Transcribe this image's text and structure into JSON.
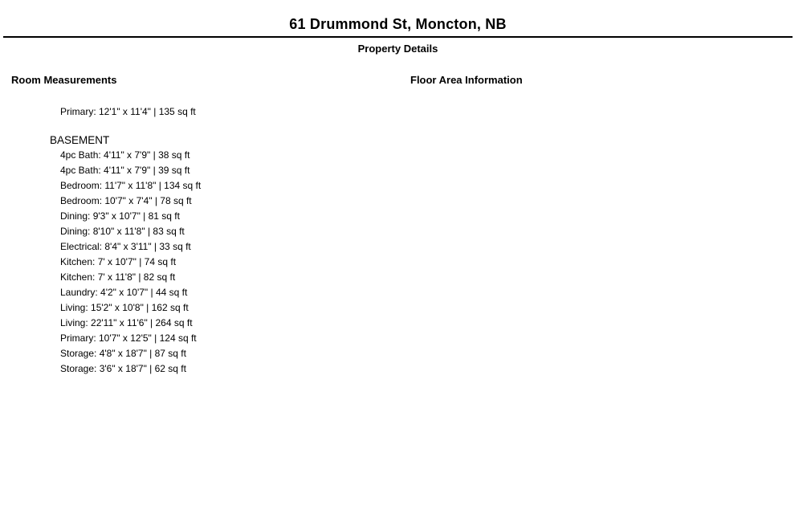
{
  "header": {
    "title": "61 Drummond St, Moncton, NB",
    "subtitle": "Property Details",
    "divider_color": "#000000"
  },
  "colors": {
    "text": "#000000",
    "background": "#ffffff"
  },
  "room_measurements": {
    "heading": "Room Measurements",
    "ungrouped_items": [
      "Primary: 12'1\" x 11'4\" | 135 sq ft"
    ],
    "groups": [
      {
        "name": "BASEMENT",
        "items": [
          "4pc Bath: 4'11\" x 7'9\" | 38 sq ft",
          "4pc Bath: 4'11\" x 7'9\" | 39 sq ft",
          "Bedroom: 11'7\" x 11'8\" | 134 sq ft",
          "Bedroom: 10'7\" x 7'4\" | 78 sq ft",
          "Dining: 9'3\" x 10'7\" | 81 sq ft",
          "Dining: 8'10\" x 11'8\" | 83 sq ft",
          "Electrical: 8'4\" x 3'11\" | 33 sq ft",
          "Kitchen: 7' x 10'7\" | 74 sq ft",
          "Kitchen: 7' x 11'8\" | 82 sq ft",
          "Laundry: 4'2\" x 10'7\" | 44 sq ft",
          "Living: 15'2\" x 10'8\" | 162 sq ft",
          "Living: 22'11\" x 11'6\" | 264 sq ft",
          "Primary: 10'7\" x 12'5\" | 124 sq ft",
          "Storage: 4'8\" x 18'7\" | 87 sq ft",
          "Storage: 3'6\" x 18'7\" | 62 sq ft"
        ]
      }
    ]
  },
  "floor_area": {
    "heading": "Floor Area Information"
  }
}
